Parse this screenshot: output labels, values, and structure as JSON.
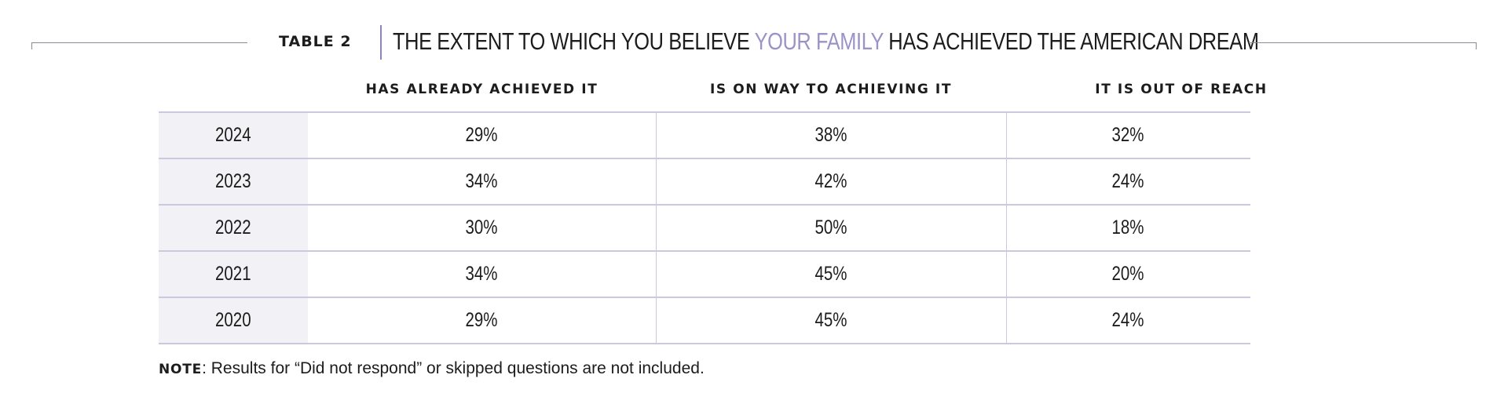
{
  "header": {
    "table_label": "TABLE 2",
    "title_before": "THE EXTENT TO WHICH YOU BELIEVE ",
    "title_highlight": "YOUR FAMILY",
    "title_after": " HAS ACHIEVED THE AMERICAN DREAM"
  },
  "colors": {
    "highlight": "#9b93c8",
    "separator": "#8f86b8",
    "row_rule": "#cbc8df",
    "year_cell_bg": "#f2f1f6"
  },
  "columns": [
    "HAS ALREADY ACHIEVED IT",
    "IS ON WAY TO ACHIEVING IT",
    "IT IS OUT OF REACH"
  ],
  "rows": [
    {
      "year": "2024",
      "values": [
        "29%",
        "38%",
        "32%"
      ]
    },
    {
      "year": "2023",
      "values": [
        "34%",
        "42%",
        "24%"
      ]
    },
    {
      "year": "2022",
      "values": [
        "30%",
        "50%",
        "18%"
      ]
    },
    {
      "year": "2021",
      "values": [
        "34%",
        "45%",
        "20%"
      ]
    },
    {
      "year": "2020",
      "values": [
        "29%",
        "45%",
        "24%"
      ]
    }
  ],
  "note": {
    "label": "NOTE",
    "text": ": Results for “Did not respond” or skipped questions are not included."
  }
}
